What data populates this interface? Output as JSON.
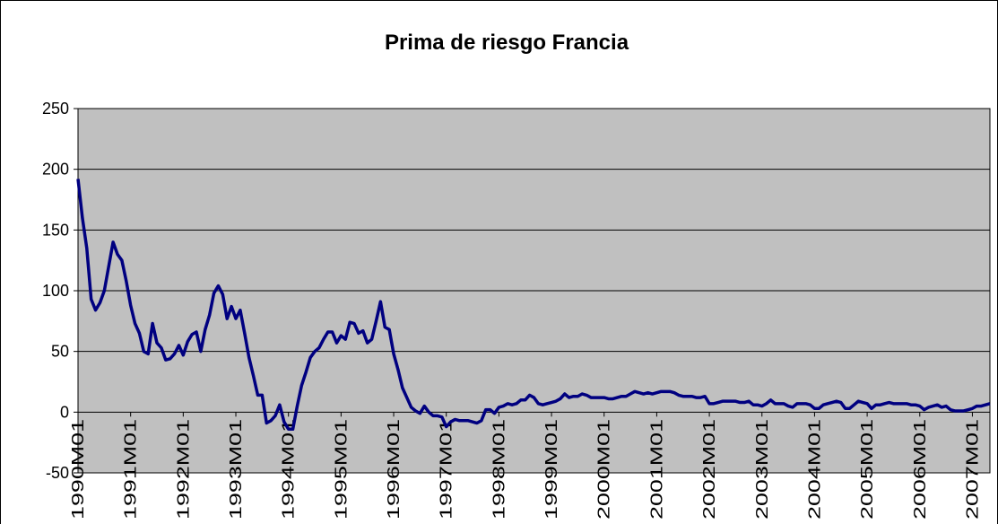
{
  "chart_data": {
    "type": "line",
    "title": "Prima de riesgo Francia",
    "categories": [
      "1990M01",
      null,
      null,
      null,
      null,
      null,
      null,
      null,
      null,
      null,
      null,
      null,
      "1991M01",
      null,
      null,
      null,
      null,
      null,
      null,
      null,
      null,
      null,
      null,
      null,
      "1992M01",
      null,
      null,
      null,
      null,
      null,
      null,
      null,
      null,
      null,
      null,
      null,
      "1993M01",
      null,
      null,
      null,
      null,
      null,
      null,
      null,
      null,
      null,
      null,
      null,
      "1994M01",
      null,
      null,
      null,
      null,
      null,
      null,
      null,
      null,
      null,
      null,
      null,
      "1995M01",
      null,
      null,
      null,
      null,
      null,
      null,
      null,
      null,
      null,
      null,
      null,
      "1996M01",
      null,
      null,
      null,
      null,
      null,
      null,
      null,
      null,
      null,
      null,
      null,
      "1997M01",
      null,
      null,
      null,
      null,
      null,
      null,
      null,
      null,
      null,
      null,
      null,
      "1998M01",
      null,
      null,
      null,
      null,
      null,
      null,
      null,
      null,
      null,
      null,
      null,
      "1999M01",
      null,
      null,
      null,
      null,
      null,
      null,
      null,
      null,
      null,
      null,
      null,
      "2000M01",
      null,
      null,
      null,
      null,
      null,
      null,
      null,
      null,
      null,
      null,
      null,
      "2001M01",
      null,
      null,
      null,
      null,
      null,
      null,
      null,
      null,
      null,
      null,
      null,
      "2002M01",
      null,
      null,
      null,
      null,
      null,
      null,
      null,
      null,
      null,
      null,
      null,
      "2003M01",
      null,
      null,
      null,
      null,
      null,
      null,
      null,
      null,
      null,
      null,
      null,
      "2004M01",
      null,
      null,
      null,
      null,
      null,
      null,
      null,
      null,
      null,
      null,
      null,
      "2005M01",
      null,
      null,
      null,
      null,
      null,
      null,
      null,
      null,
      null,
      null,
      null,
      "2006M01",
      null,
      null,
      null,
      null,
      null,
      null,
      null,
      null,
      null,
      null,
      null,
      "2007M01",
      null,
      null,
      null,
      null
    ],
    "values": [
      192,
      160,
      135,
      93,
      84,
      90,
      100,
      120,
      140,
      130,
      125,
      108,
      88,
      73,
      65,
      50,
      48,
      73,
      57,
      53,
      43,
      44,
      48,
      55,
      47,
      58,
      64,
      66,
      50,
      68,
      80,
      98,
      104,
      97,
      77,
      87,
      77,
      84,
      65,
      45,
      30,
      14,
      14,
      -9,
      -7,
      -3,
      6,
      -8,
      -14,
      -14,
      5,
      22,
      33,
      45,
      50,
      53,
      60,
      66,
      66,
      57,
      63,
      60,
      74,
      73,
      65,
      67,
      57,
      60,
      75,
      91,
      70,
      68,
      48,
      35,
      20,
      12,
      4,
      1,
      -1,
      5,
      0,
      -3,
      -3,
      -4,
      -12,
      -8,
      -6,
      -7,
      -7,
      -7,
      -8,
      -9,
      -7,
      2,
      2,
      -1,
      4,
      5,
      7,
      6,
      7,
      10,
      10,
      14,
      12,
      7,
      6,
      7,
      8,
      9,
      11,
      15,
      12,
      13,
      13,
      15,
      14,
      12,
      12,
      12,
      12,
      11,
      11,
      12,
      13,
      13,
      15,
      17,
      16,
      15,
      16,
      15,
      16,
      17,
      17,
      17,
      16,
      14,
      13,
      13,
      13,
      12,
      12,
      13,
      7,
      7,
      8,
      9,
      9,
      9,
      9,
      8,
      8,
      9,
      6,
      6,
      5,
      7,
      10,
      7,
      7,
      7,
      5,
      4,
      7,
      7,
      7,
      6,
      3,
      3,
      6,
      7,
      8,
      9,
      8,
      3,
      3,
      6,
      9,
      8,
      7,
      3,
      6,
      6,
      7,
      8,
      7,
      7,
      7,
      7,
      6,
      6,
      5,
      2,
      4,
      5,
      6,
      4,
      5,
      2,
      1,
      1,
      1,
      2,
      3,
      5,
      5,
      6,
      7
    ],
    "color": "#000080",
    "ylim": [
      -50,
      250
    ],
    "yticks": [
      -50,
      0,
      50,
      100,
      150,
      200,
      250
    ],
    "grid": true
  }
}
